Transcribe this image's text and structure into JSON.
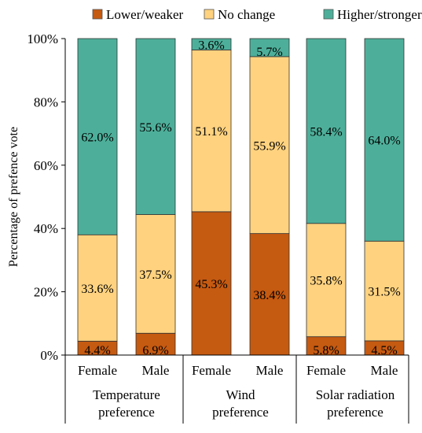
{
  "chart_data": {
    "type": "bar",
    "stacked": true,
    "categories": [
      "Female",
      "Male",
      "Female",
      "Male",
      "Female",
      "Male"
    ],
    "groups": [
      {
        "label_lines": [
          "Temperature",
          "preference"
        ],
        "category_indices": [
          0,
          1
        ]
      },
      {
        "label_lines": [
          "Wind",
          "preference"
        ],
        "category_indices": [
          2,
          3
        ]
      },
      {
        "label_lines": [
          "Solar radiation",
          "preference"
        ],
        "category_indices": [
          4,
          5
        ]
      }
    ],
    "series": [
      {
        "name": "Lower/weaker",
        "color": "#C55A11",
        "values": [
          4.4,
          6.9,
          45.3,
          38.4,
          5.8,
          4.5
        ],
        "labels": [
          "4.4%",
          "6.9%",
          "45.3%",
          "38.4%",
          "5.8%",
          "4.5%"
        ]
      },
      {
        "name": "No change",
        "color": "#FFD27F",
        "values": [
          33.6,
          37.5,
          51.1,
          55.9,
          35.8,
          31.5
        ],
        "labels": [
          "33.6%",
          "37.5%",
          "51.1%",
          "55.9%",
          "35.8%",
          "31.5%"
        ]
      },
      {
        "name": "Higher/stronger",
        "color": "#4DAF9A",
        "values": [
          62.0,
          55.6,
          3.6,
          5.7,
          58.4,
          64.0
        ],
        "labels": [
          "62.0%",
          "55.6%",
          "3.6%",
          "5.7%",
          "58.4%",
          "64.0%"
        ]
      }
    ],
    "ylabel": "Percentage of prefence vote",
    "ylim": [
      0,
      100
    ],
    "yticks": [
      "0%",
      "20%",
      "40%",
      "60%",
      "80%",
      "100%"
    ],
    "legend_position": "top",
    "grid": false
  }
}
